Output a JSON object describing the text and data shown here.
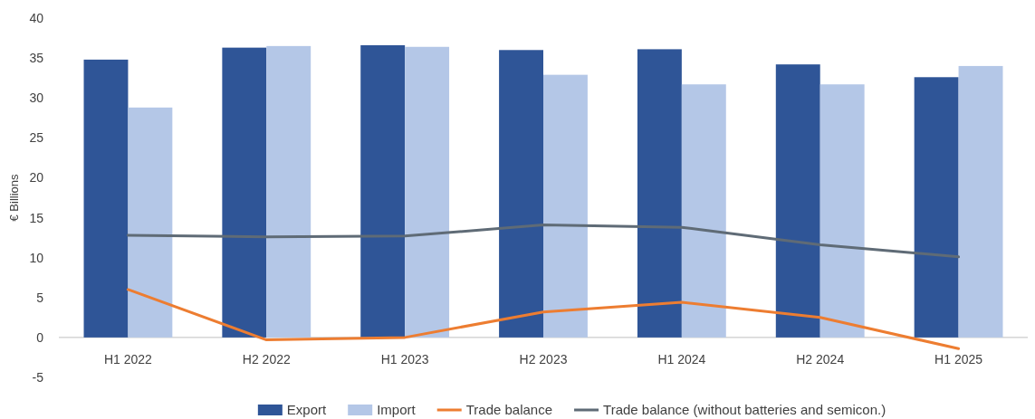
{
  "chart_data": {
    "type": "bar",
    "ylabel": "€ Billions",
    "categories": [
      "H1 2022",
      "H2 2022",
      "H1 2023",
      "H2 2023",
      "H1 2024",
      "H2 2024",
      "H1 2025"
    ],
    "series": [
      {
        "name": "Export",
        "color": "#2f5597",
        "values": [
          34.8,
          36.3,
          36.6,
          36.0,
          36.1,
          34.2,
          32.6
        ]
      },
      {
        "name": "Import",
        "color": "#b4c7e7",
        "values": [
          28.8,
          36.5,
          36.4,
          32.9,
          31.7,
          31.7,
          34.0
        ]
      },
      {
        "name": "Trade balance",
        "type": "line",
        "color": "#ed7d31",
        "values": [
          6.0,
          -0.3,
          0.0,
          3.2,
          4.4,
          2.5,
          -1.4
        ]
      },
      {
        "name": "Trade balance (without batteries and semicon.)",
        "type": "line",
        "color": "#5f6b76",
        "values": [
          12.8,
          12.6,
          12.7,
          14.1,
          13.8,
          11.6,
          10.1
        ]
      }
    ],
    "ylim": [
      -5,
      40
    ],
    "yticks": [
      -5,
      0,
      5,
      10,
      15,
      20,
      25,
      30,
      35,
      40
    ],
    "grid": false,
    "legend": "bottom"
  }
}
